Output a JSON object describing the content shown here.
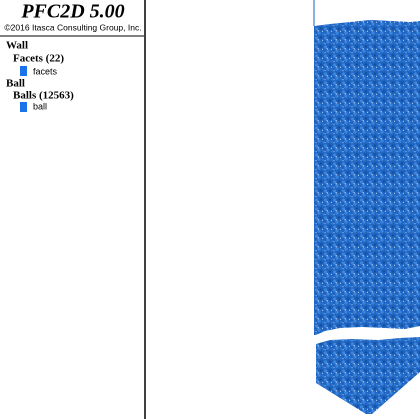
{
  "legend": {
    "title": "PFC2D 5.00",
    "copyright": "©2016 Itasca Consulting Group, Inc.",
    "groups": [
      {
        "heading": "Wall",
        "subheading": "Facets (22)",
        "item": "facets"
      },
      {
        "heading": "Ball",
        "subheading": "Balls (12563)",
        "item": "ball"
      }
    ]
  }
}
